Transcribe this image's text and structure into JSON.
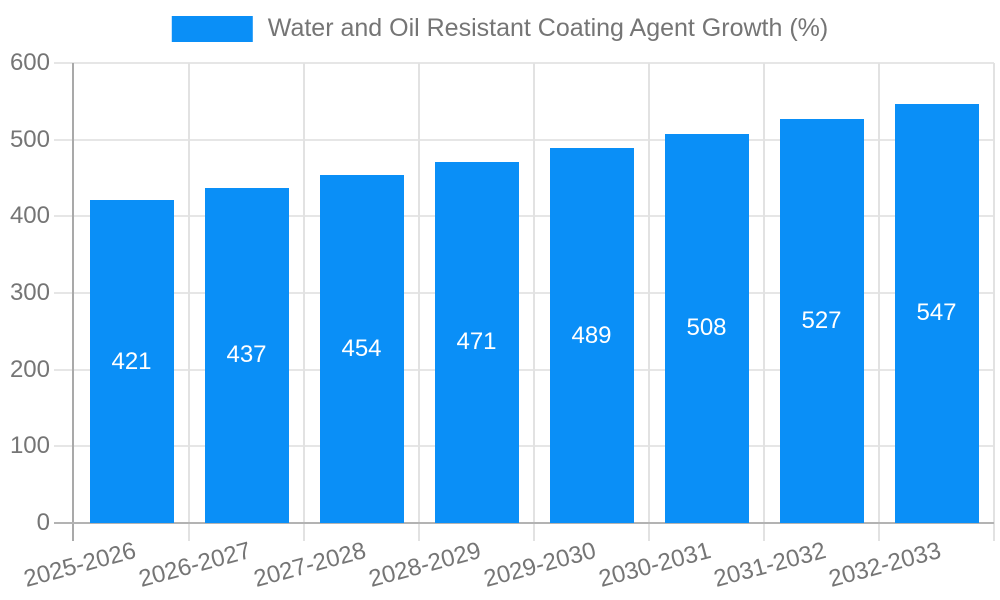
{
  "chart_data": {
    "type": "bar",
    "title": "Water and Oil Resistant Coating Agent Growth (%)",
    "legend": {
      "position": "top",
      "label": "Water and Oil Resistant Coating Agent Growth (%)",
      "swatch_icon": "legend-color-swatch"
    },
    "categories": [
      "2025-2026",
      "2026-2027",
      "2027-2028",
      "2028-2029",
      "2029-2030",
      "2030-2031",
      "2031-2032",
      "2032-2033"
    ],
    "values": [
      421,
      437,
      454,
      471,
      489,
      508,
      527,
      547
    ],
    "value_labels": [
      "421",
      "437",
      "454",
      "471",
      "489",
      "508",
      "527",
      "547"
    ],
    "xlabel": "",
    "ylabel": "",
    "ylim": [
      0,
      600
    ],
    "yticks": [
      0,
      100,
      200,
      300,
      400,
      500,
      600
    ],
    "grid": true,
    "x_tick_rotation_deg": -15,
    "colors": {
      "bar": "#0a8ff7",
      "bar_value_label": "#ffffff",
      "axis_text": "#757575",
      "legend_text": "#757575",
      "gridline": "#e6e6e6",
      "axis_line": "#b0b0b0",
      "background": "#ffffff"
    }
  }
}
